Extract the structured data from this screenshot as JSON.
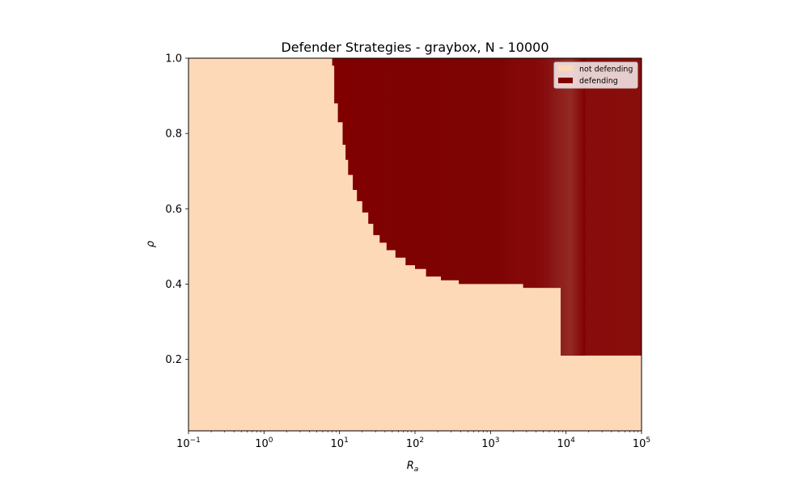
{
  "chart_data": {
    "type": "heatmap",
    "title": "Defender Strategies - graybox, N - 10000",
    "xlabel_base": "R",
    "xlabel_sub": "a",
    "ylabel": "ρ",
    "xscale": "log",
    "xlim": [
      0.1,
      100000
    ],
    "ylim": [
      0.01,
      1.0
    ],
    "x_ticks": [
      {
        "value": 0.1,
        "base": "10",
        "exp": "−1"
      },
      {
        "value": 1,
        "base": "10",
        "exp": "0"
      },
      {
        "value": 10,
        "base": "10",
        "exp": "1"
      },
      {
        "value": 100,
        "base": "10",
        "exp": "2"
      },
      {
        "value": 1000,
        "base": "10",
        "exp": "3"
      },
      {
        "value": 10000,
        "base": "10",
        "exp": "4"
      },
      {
        "value": 100000,
        "base": "10",
        "exp": "5"
      }
    ],
    "y_ticks": [
      {
        "value": 0.2,
        "label": "0.2"
      },
      {
        "value": 0.4,
        "label": "0.4"
      },
      {
        "value": 0.6,
        "label": "0.6"
      },
      {
        "value": 0.8,
        "label": "0.8"
      },
      {
        "value": 1.0,
        "label": "1.0"
      }
    ],
    "categories": [
      "not defending",
      "defending"
    ],
    "colors": {
      "not_defending": "#fdd9b8",
      "defending": "#800000",
      "defending_faded": "#8f2420"
    },
    "boundary": [
      {
        "ra": 7.2,
        "rho": 1.0
      },
      {
        "ra": 8.0,
        "rho": 0.98
      },
      {
        "ra": 8.5,
        "rho": 0.88
      },
      {
        "ra": 9.5,
        "rho": 0.83
      },
      {
        "ra": 11,
        "rho": 0.77
      },
      {
        "ra": 12,
        "rho": 0.73
      },
      {
        "ra": 13,
        "rho": 0.69
      },
      {
        "ra": 15,
        "rho": 0.65
      },
      {
        "ra": 17,
        "rho": 0.62
      },
      {
        "ra": 20,
        "rho": 0.59
      },
      {
        "ra": 24,
        "rho": 0.56
      },
      {
        "ra": 28,
        "rho": 0.53
      },
      {
        "ra": 34,
        "rho": 0.51
      },
      {
        "ra": 42,
        "rho": 0.49
      },
      {
        "ra": 55,
        "rho": 0.47
      },
      {
        "ra": 75,
        "rho": 0.45
      },
      {
        "ra": 100,
        "rho": 0.44
      },
      {
        "ra": 140,
        "rho": 0.42
      },
      {
        "ra": 220,
        "rho": 0.41
      },
      {
        "ra": 380,
        "rho": 0.4
      },
      {
        "ra": 2700,
        "rho": 0.39
      },
      {
        "ra": 8500,
        "rho": 0.21
      },
      {
        "ra": 100000,
        "rho": 0.21
      }
    ],
    "faded_band": {
      "ra_start": 3000,
      "ra_end": 18000
    },
    "legend_position": "top-right",
    "grid": false
  }
}
